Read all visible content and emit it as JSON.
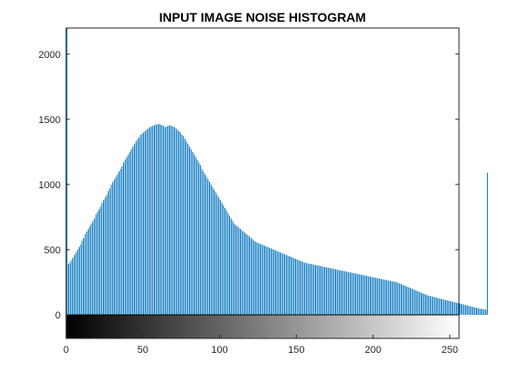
{
  "chart_data": {
    "type": "bar",
    "title": "INPUT IMAGE NOISE HISTOGRAM",
    "xlabel": "",
    "ylabel": "",
    "xlim": [
      0,
      256
    ],
    "ylim": [
      -180,
      2200
    ],
    "xticks": [
      "0",
      "50",
      "100",
      "150",
      "200",
      "250"
    ],
    "yticks": [
      "0",
      "500",
      "1000",
      "1500",
      "2000"
    ],
    "grid": false,
    "legend": "none",
    "colorbar": "grayscale 0-255 along x-axis",
    "bar_color": "#0072BD",
    "series": [
      {
        "values": [
          2200,
          390,
          400,
          420,
          440,
          460,
          480,
          500,
          520,
          540,
          570,
          590,
          620,
          640,
          660,
          680,
          700,
          720,
          740,
          770,
          790,
          810,
          830,
          860,
          880,
          900,
          920,
          950,
          970,
          1000,
          1020,
          1040,
          1060,
          1080,
          1100,
          1120,
          1140,
          1170,
          1190,
          1210,
          1230,
          1250,
          1270,
          1290,
          1310,
          1330,
          1350,
          1360,
          1380,
          1390,
          1400,
          1410,
          1420,
          1430,
          1440,
          1445,
          1450,
          1455,
          1460,
          1462,
          1465,
          1460,
          1455,
          1450,
          1440,
          1445,
          1450,
          1455,
          1450,
          1445,
          1440,
          1430,
          1420,
          1410,
          1400,
          1380,
          1370,
          1350,
          1330,
          1310,
          1290,
          1270,
          1250,
          1230,
          1210,
          1190,
          1170,
          1150,
          1120,
          1100,
          1080,
          1060,
          1040,
          1020,
          1000,
          980,
          960,
          940,
          920,
          900,
          880,
          860,
          840,
          820,
          800,
          780,
          760,
          740,
          720,
          700,
          690,
          680,
          670,
          660,
          650,
          640,
          630,
          620,
          610,
          600,
          590,
          580,
          570,
          560,
          555,
          550,
          545,
          540,
          535,
          530,
          525,
          520,
          515,
          510,
          505,
          500,
          495,
          490,
          485,
          480,
          475,
          470,
          465,
          460,
          455,
          450,
          445,
          440,
          435,
          430,
          425,
          420,
          415,
          410,
          405,
          400,
          398,
          395,
          392,
          390,
          388,
          385,
          383,
          380,
          378,
          375,
          373,
          370,
          368,
          365,
          363,
          360,
          358,
          355,
          353,
          350,
          348,
          345,
          343,
          340,
          338,
          335,
          333,
          330,
          328,
          325,
          323,
          320,
          318,
          315,
          313,
          310,
          308,
          305,
          303,
          300,
          298,
          295,
          293,
          290,
          288,
          285,
          283,
          280,
          278,
          275,
          273,
          270,
          268,
          265,
          263,
          260,
          258,
          255,
          253,
          250,
          245,
          240,
          235,
          230,
          225,
          220,
          215,
          210,
          205,
          200,
          195,
          190,
          185,
          180,
          175,
          170,
          165,
          160,
          155,
          150,
          147,
          144,
          141,
          138,
          135,
          132,
          129,
          126,
          123,
          120,
          117,
          114,
          111,
          108,
          105,
          102,
          99,
          96,
          93,
          90,
          87,
          84,
          81,
          78,
          75,
          72,
          69,
          66,
          63,
          60,
          57,
          54,
          51,
          48,
          46,
          44,
          42,
          40,
          1090
        ]
      }
    ]
  }
}
